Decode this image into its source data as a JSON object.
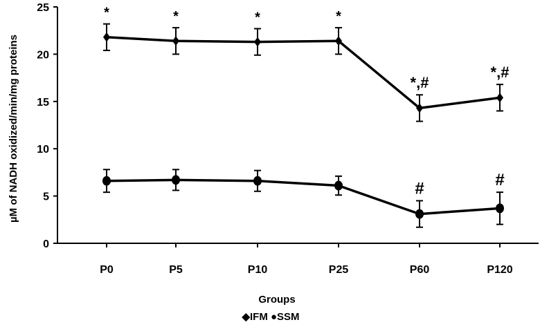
{
  "chart_data": {
    "type": "line",
    "title": "",
    "xlabel": "Groups",
    "ylabel": "µM of NADH oxidized/min/mg proteins",
    "categories": [
      "P0",
      "P5",
      "P10",
      "P25",
      "P60",
      "P120"
    ],
    "ylim": [
      0,
      25
    ],
    "yticks": [
      "0",
      "5",
      "10",
      "15",
      "20",
      "25"
    ],
    "legend": "◆IFM ●SSM",
    "legend_position": "bottom",
    "grid": false,
    "series": [
      {
        "name": "IFM",
        "marker": "diamond",
        "values": [
          21.8,
          21.4,
          21.3,
          21.4,
          14.3,
          15.4
        ],
        "errors": [
          1.4,
          1.4,
          1.4,
          1.4,
          1.4,
          1.4
        ],
        "annotations": [
          "*",
          "*",
          "*",
          "*",
          "*,#",
          "*,#"
        ]
      },
      {
        "name": "SSM",
        "marker": "circle",
        "values": [
          6.6,
          6.7,
          6.6,
          6.1,
          3.1,
          3.7
        ],
        "errors": [
          1.2,
          1.1,
          1.1,
          1.0,
          1.4,
          1.7
        ],
        "annotations": [
          "",
          "",
          "",
          "",
          "#",
          "#"
        ]
      }
    ],
    "colors": {
      "line": "#000000",
      "axis": "#000000"
    }
  }
}
